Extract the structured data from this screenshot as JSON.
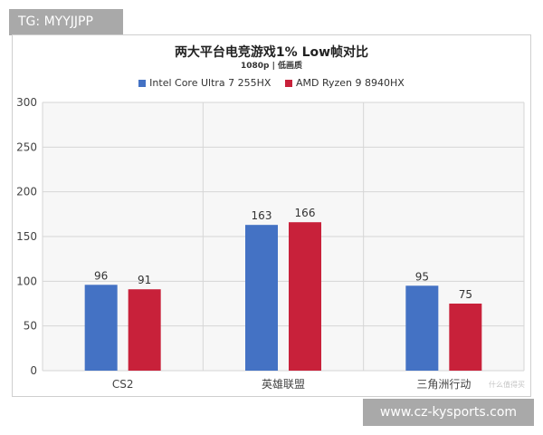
{
  "tag_badge": "TG: MYYJJPP",
  "site_badge": "www.cz-kysports.com",
  "watermark": "什么值得买",
  "colors": {
    "intel": "#4472c4",
    "amd": "#c8213a"
  },
  "chart_data": {
    "type": "bar",
    "title": "两大平台电竞游戏1% Low帧对比",
    "subtitle": "1080p | 低画质",
    "categories": [
      "CS2",
      "英雄联盟",
      "三角洲行动"
    ],
    "series": [
      {
        "name": "Intel Core Ultra 7 255HX",
        "values": [
          96,
          163,
          95
        ]
      },
      {
        "name": "AMD Ryzen 9 8940HX",
        "values": [
          91,
          166,
          75
        ]
      }
    ],
    "ylim": [
      0,
      300
    ],
    "yticks": [
      0,
      50,
      100,
      150,
      200,
      250,
      300
    ],
    "grid": true,
    "legend_position": "top-center"
  }
}
